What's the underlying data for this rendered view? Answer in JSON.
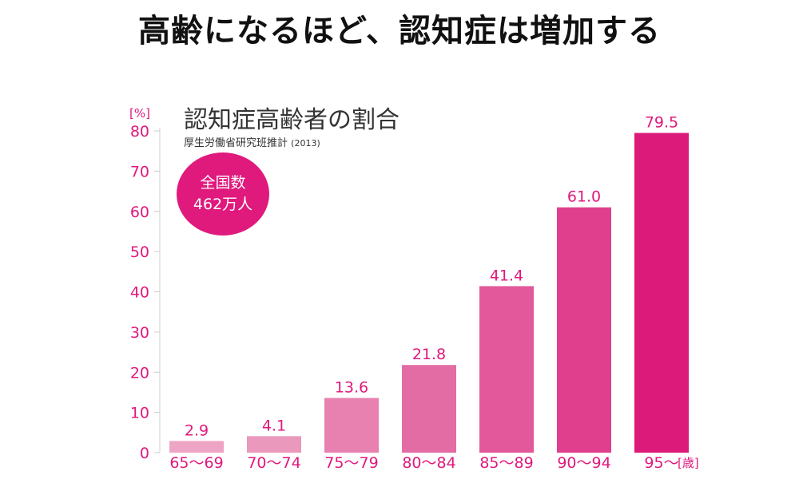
{
  "page": {
    "headline": "高齢になるほど、認知症は増加する"
  },
  "colors": {
    "accent": "#e0197d",
    "axis": "#cccccc",
    "text": "#333333",
    "bar_colors": [
      "#eea4c4",
      "#eb98bd",
      "#e880b0",
      "#e46ca4",
      "#e2589a",
      "#df3f8d",
      "#db1a7a"
    ]
  },
  "chart_data": {
    "type": "bar",
    "title": "認知症高齢者の割合",
    "subtitle": "厚生労働省研究班推計",
    "subtitle_year": "(2013)",
    "badge": {
      "line1": "全国数",
      "line2": "462万人"
    },
    "y_unit": "[%]",
    "x_unit": "[歳]",
    "categories": [
      "65〜69",
      "70〜74",
      "75〜79",
      "80〜84",
      "85〜89",
      "90〜94",
      "95〜"
    ],
    "values": [
      2.9,
      4.1,
      13.6,
      21.8,
      41.4,
      61.0,
      79.5
    ],
    "value_labels": [
      "2.9",
      "4.1",
      "13.6",
      "21.8",
      "41.4",
      "61.0",
      "79.5"
    ],
    "yticks": [
      0,
      10,
      20,
      30,
      40,
      50,
      60,
      70,
      80
    ],
    "ylim": [
      0,
      80
    ],
    "xlabel": "",
    "ylabel": ""
  }
}
